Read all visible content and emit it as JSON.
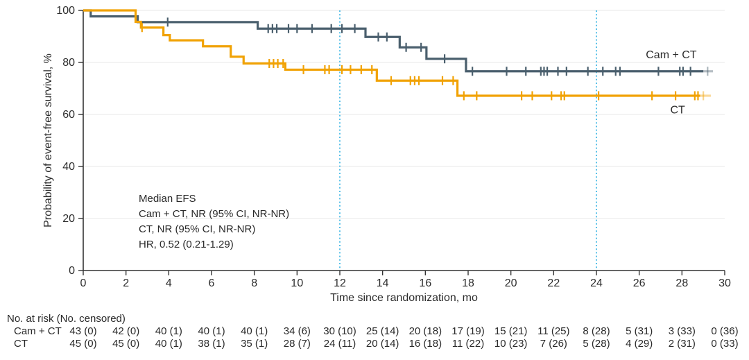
{
  "chart_data": {
    "type": "line",
    "subtype": "kaplan-meier-step",
    "title": "",
    "xlabel": "Time since randomization, mo",
    "ylabel": "Probability of event-free survival, %",
    "xlim": [
      0,
      30
    ],
    "ylim": [
      0,
      100
    ],
    "xticks": [
      0,
      2,
      4,
      6,
      8,
      10,
      12,
      14,
      16,
      18,
      20,
      22,
      24,
      26,
      28,
      30
    ],
    "yticks": [
      0,
      20,
      40,
      60,
      80,
      100
    ],
    "grid": "horizontal",
    "grid_color": "#ececec",
    "axis_color": "#333333",
    "reference_lines": {
      "x": [
        12,
        24
      ],
      "style": "dotted",
      "color": "#57c0e8"
    },
    "series": [
      {
        "name": "Cam + CT",
        "color": "#4a5f6d",
        "steps": [
          [
            0,
            100
          ],
          [
            0.35,
            97.7
          ],
          [
            2.55,
            95.5
          ],
          [
            8.16,
            93.0
          ],
          [
            13.2,
            89.8
          ],
          [
            14.8,
            85.8
          ],
          [
            16.05,
            81.4
          ],
          [
            17.9,
            76.6
          ]
        ],
        "end": 29.0,
        "censors": [
          3.95,
          8.65,
          8.85,
          9.05,
          9.6,
          10.0,
          10.7,
          11.6,
          12.1,
          12.7,
          13.8,
          14.2,
          15.1,
          15.8,
          16.9,
          18.2,
          19.8,
          20.7,
          21.4,
          21.55,
          21.7,
          22.2,
          22.6,
          23.6,
          24.3,
          24.9,
          25.1,
          26.9,
          27.9,
          28.05,
          28.4
        ],
        "faded_tail": {
          "from": 29.0,
          "to": 29.45,
          "censor": 29.2
        },
        "label": {
          "text": "Cam + CT",
          "x": 27.5,
          "y": 82.9
        }
      },
      {
        "name": "CT",
        "color": "#f1a204",
        "steps": [
          [
            0,
            100
          ],
          [
            2.45,
            95.6
          ],
          [
            2.7,
            93.4
          ],
          [
            3.75,
            90.5
          ],
          [
            4.05,
            88.5
          ],
          [
            5.6,
            86.2
          ],
          [
            6.9,
            82.2
          ],
          [
            7.5,
            79.6
          ],
          [
            9.45,
            77.2
          ],
          [
            13.73,
            73.0
          ],
          [
            17.5,
            67.2
          ]
        ],
        "end": 28.85,
        "censors": [
          2.75,
          8.7,
          8.9,
          9.1,
          9.35,
          10.3,
          11.3,
          11.5,
          12.1,
          12.5,
          13.0,
          13.5,
          14.4,
          15.3,
          15.5,
          15.7,
          16.8,
          17.3,
          17.8,
          18.4,
          20.5,
          21.0,
          21.9,
          22.35,
          22.5,
          24.1,
          26.6,
          27.7,
          28.6,
          28.75
        ],
        "faded_tail": {
          "from": 28.85,
          "to": 29.35,
          "censor": 29.0
        },
        "label": {
          "text": "CT",
          "x": 27.8,
          "y": 61.8
        }
      }
    ]
  },
  "annotation": {
    "lines": [
      "Median EFS",
      "Cam + CT, NR (95% CI, NR-NR)",
      "CT, NR (95% CI, NR-NR)",
      "HR, 0.52 (0.21-1.29)"
    ]
  },
  "risk_table": {
    "header": "No. at risk (No. censored)",
    "times": [
      0,
      2,
      4,
      6,
      8,
      10,
      12,
      14,
      16,
      18,
      20,
      22,
      24,
      26,
      28,
      30
    ],
    "rows": [
      {
        "label": "Cam + CT",
        "values": [
          "43 (0)",
          "42 (0)",
          "40 (1)",
          "40 (1)",
          "40 (1)",
          "34 (6)",
          "30 (10)",
          "25 (14)",
          "20 (18)",
          "17 (19)",
          "15 (21)",
          "11 (25)",
          "8 (28)",
          "5 (31)",
          "3 (33)",
          "0 (36)"
        ]
      },
      {
        "label": "CT",
        "values": [
          "45 (0)",
          "45 (0)",
          "40 (1)",
          "38 (1)",
          "35 (1)",
          "28 (7)",
          "24 (11)",
          "20 (14)",
          "16 (18)",
          "11 (22)",
          "10 (23)",
          "7 (26)",
          "5 (28)",
          "4 (29)",
          "2 (31)",
          "0 (33)"
        ]
      }
    ]
  }
}
